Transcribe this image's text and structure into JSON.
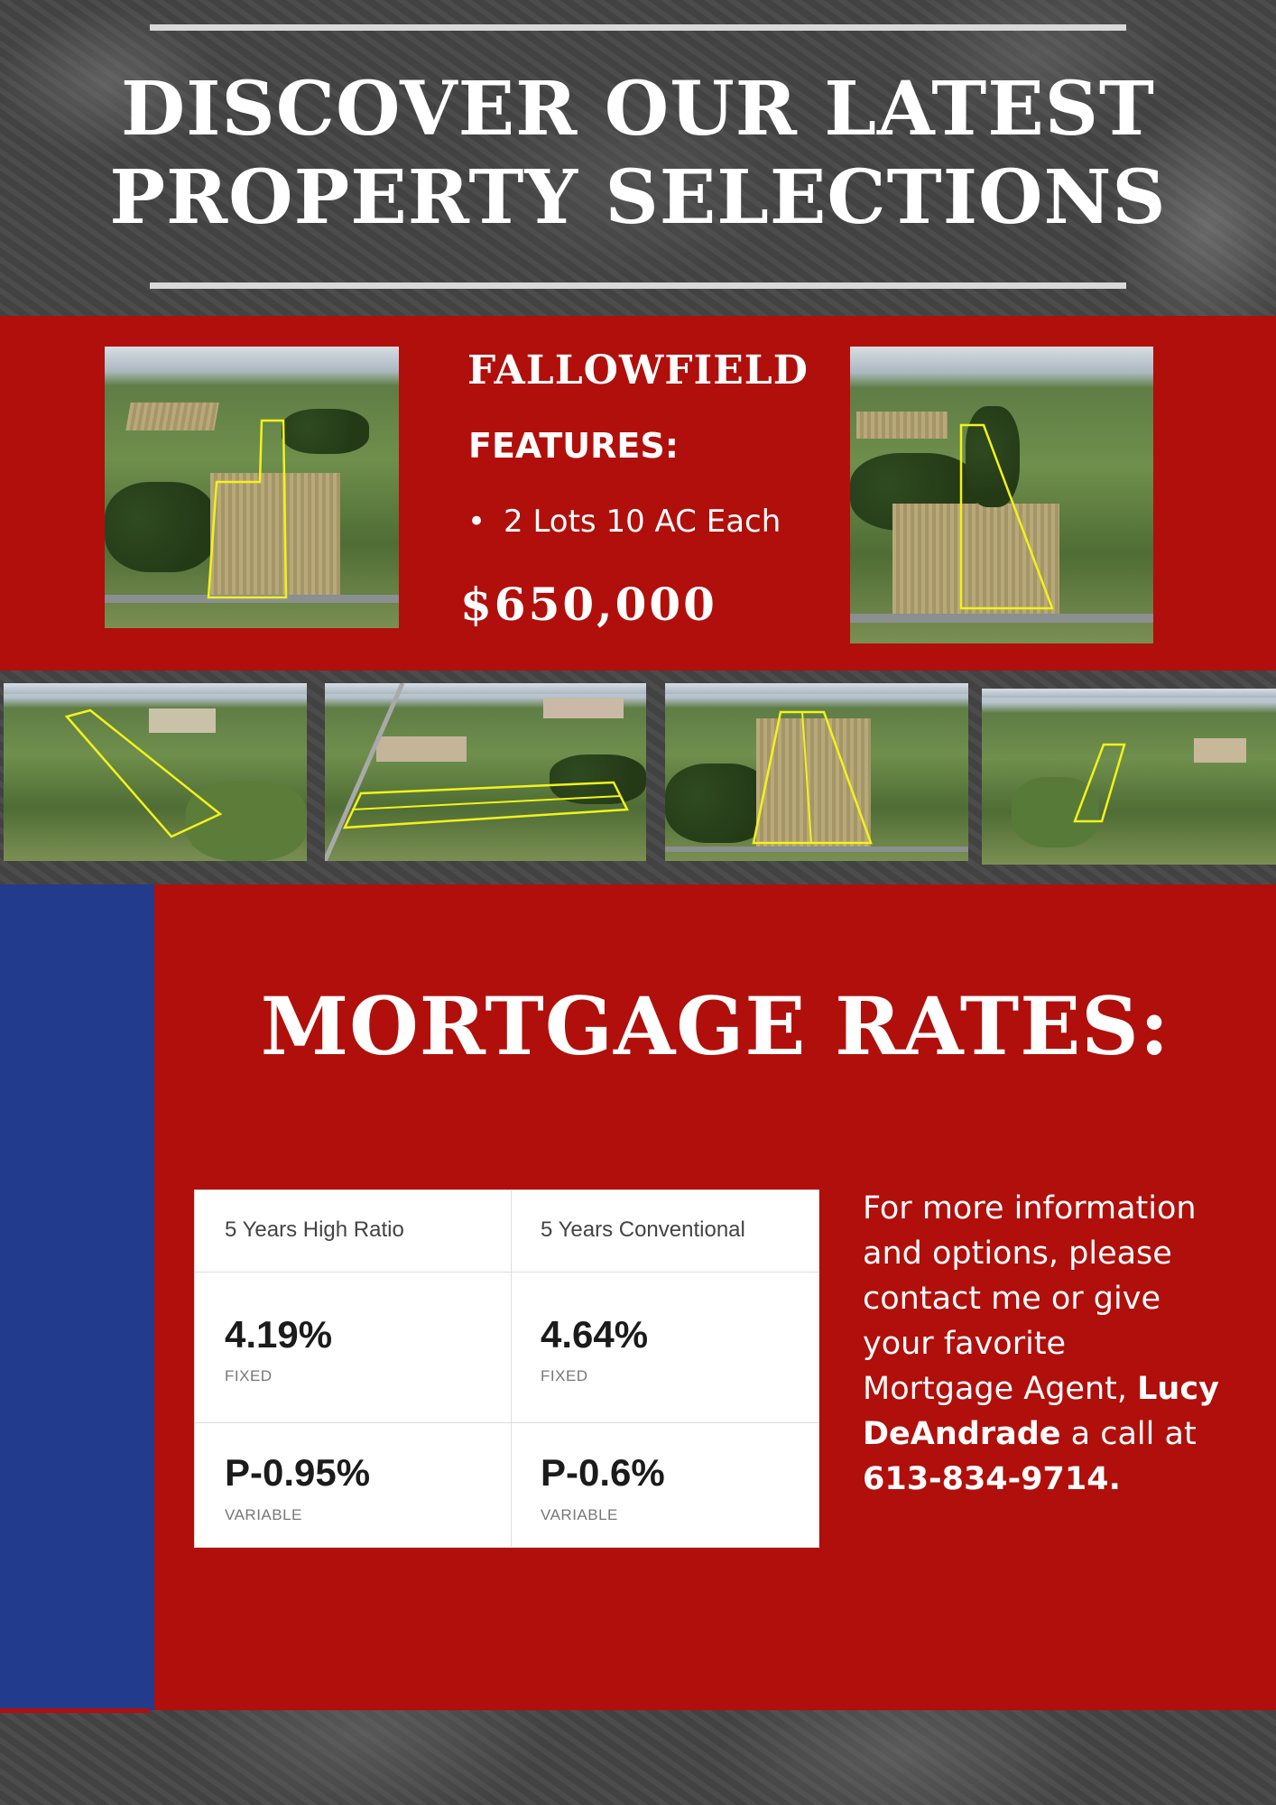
{
  "header": {
    "headline_line1": "DISCOVER OUR LATEST",
    "headline_line2": "PROPERTY SELECTIONS"
  },
  "listing": {
    "title": "FALLOWFIELD",
    "features_label": "FEATURES:",
    "features": [
      "2 Lots 10 AC Each"
    ],
    "price": "$650,000"
  },
  "gallery": {
    "images": [
      "aerial-photo",
      "aerial-photo",
      "aerial-photo",
      "aerial-photo",
      "aerial-photo",
      "aerial-photo"
    ]
  },
  "mortgage": {
    "title": "MORTGAGE RATES:",
    "columns": [
      {
        "header": "5 Years High Ratio",
        "fixed_rate": "4.19%",
        "fixed_label": "FIXED",
        "variable_rate": "P-0.95%",
        "variable_label": "VARIABLE"
      },
      {
        "header": "5 Years Conventional",
        "fixed_rate": "4.64%",
        "fixed_label": "FIXED",
        "variable_rate": "P-0.6%",
        "variable_label": "VARIABLE"
      }
    ]
  },
  "contact": {
    "text_before": "For more information and options, please contact me or give your favorite Mortgage Agent, ",
    "agent_name": "Lucy DeAndrade",
    "text_middle": " a call at ",
    "phone": "613-834-9714."
  },
  "colors": {
    "red": "#b10f0b",
    "blue": "#223b8c",
    "outline": "#f2f21c"
  }
}
